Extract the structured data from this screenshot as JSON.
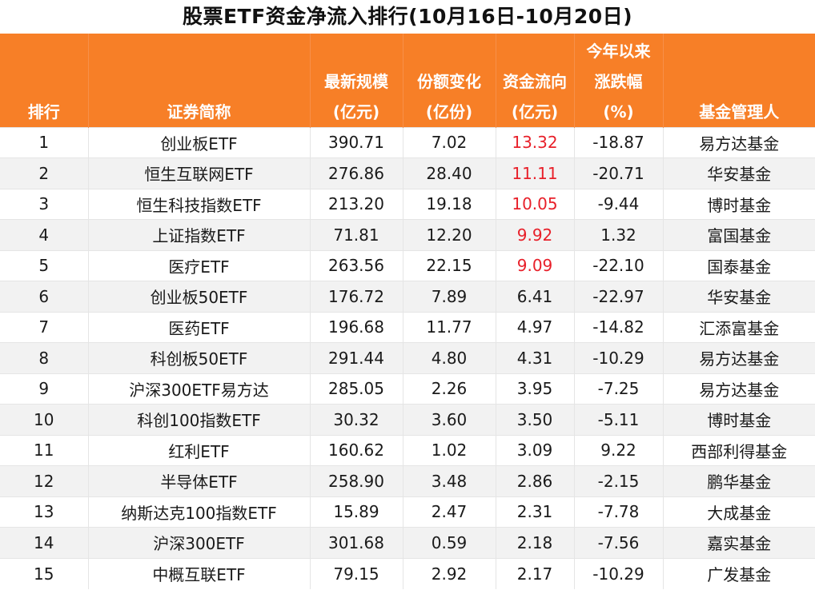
{
  "title": "股票ETF资金净流入排行(10月16日-10月20日)",
  "colors": {
    "header_bg": "#f77f27",
    "inflow_highlight": "#e8202a",
    "stripe": "#f2f2f2"
  },
  "headers": {
    "rank": [
      "排行"
    ],
    "name": [
      "证券简称"
    ],
    "scale": [
      "最新规模",
      "(亿元)"
    ],
    "share": [
      "份额变化",
      "(亿份)"
    ],
    "flow": [
      "资金流向",
      "(亿元)"
    ],
    "change": [
      "今年以来",
      "涨跌幅",
      "(%)"
    ],
    "manager": [
      "基金管理人"
    ]
  },
  "rows": [
    {
      "rank": "1",
      "name": "创业板ETF",
      "scale": "390.71",
      "share": "7.02",
      "flow": "13.32",
      "change": "-18.87",
      "manager": "易方达基金",
      "highlight": true
    },
    {
      "rank": "2",
      "name": "恒生互联网ETF",
      "scale": "276.86",
      "share": "28.40",
      "flow": "11.11",
      "change": "-20.71",
      "manager": "华安基金",
      "highlight": true
    },
    {
      "rank": "3",
      "name": "恒生科技指数ETF",
      "scale": "213.20",
      "share": "19.18",
      "flow": "10.05",
      "change": "-9.44",
      "manager": "博时基金",
      "highlight": true
    },
    {
      "rank": "4",
      "name": "上证指数ETF",
      "scale": "71.81",
      "share": "12.20",
      "flow": "9.92",
      "change": "1.32",
      "manager": "富国基金",
      "highlight": true
    },
    {
      "rank": "5",
      "name": "医疗ETF",
      "scale": "263.56",
      "share": "22.15",
      "flow": "9.09",
      "change": "-22.10",
      "manager": "国泰基金",
      "highlight": true
    },
    {
      "rank": "6",
      "name": "创业板50ETF",
      "scale": "176.72",
      "share": "7.89",
      "flow": "6.41",
      "change": "-22.97",
      "manager": "华安基金",
      "highlight": false
    },
    {
      "rank": "7",
      "name": "医药ETF",
      "scale": "196.68",
      "share": "11.77",
      "flow": "4.97",
      "change": "-14.82",
      "manager": "汇添富基金",
      "highlight": false
    },
    {
      "rank": "8",
      "name": "科创板50ETF",
      "scale": "291.44",
      "share": "4.80",
      "flow": "4.31",
      "change": "-10.29",
      "manager": "易方达基金",
      "highlight": false
    },
    {
      "rank": "9",
      "name": "沪深300ETF易方达",
      "scale": "285.05",
      "share": "2.26",
      "flow": "3.95",
      "change": "-7.25",
      "manager": "易方达基金",
      "highlight": false
    },
    {
      "rank": "10",
      "name": "科创100指数ETF",
      "scale": "30.32",
      "share": "3.60",
      "flow": "3.50",
      "change": "-5.11",
      "manager": "博时基金",
      "highlight": false
    },
    {
      "rank": "11",
      "name": "红利ETF",
      "scale": "160.62",
      "share": "1.02",
      "flow": "3.09",
      "change": "9.22",
      "manager": "西部利得基金",
      "highlight": false
    },
    {
      "rank": "12",
      "name": "半导体ETF",
      "scale": "258.90",
      "share": "3.48",
      "flow": "2.86",
      "change": "-2.15",
      "manager": "鹏华基金",
      "highlight": false
    },
    {
      "rank": "13",
      "name": "纳斯达克100指数ETF",
      "scale": "15.89",
      "share": "2.47",
      "flow": "2.31",
      "change": "-7.78",
      "manager": "大成基金",
      "highlight": false
    },
    {
      "rank": "14",
      "name": "沪深300ETF",
      "scale": "301.68",
      "share": "0.59",
      "flow": "2.18",
      "change": "-7.56",
      "manager": "嘉实基金",
      "highlight": false
    },
    {
      "rank": "15",
      "name": "中概互联ETF",
      "scale": "79.15",
      "share": "2.92",
      "flow": "2.17",
      "change": "-10.29",
      "manager": "广发基金",
      "highlight": false
    }
  ]
}
